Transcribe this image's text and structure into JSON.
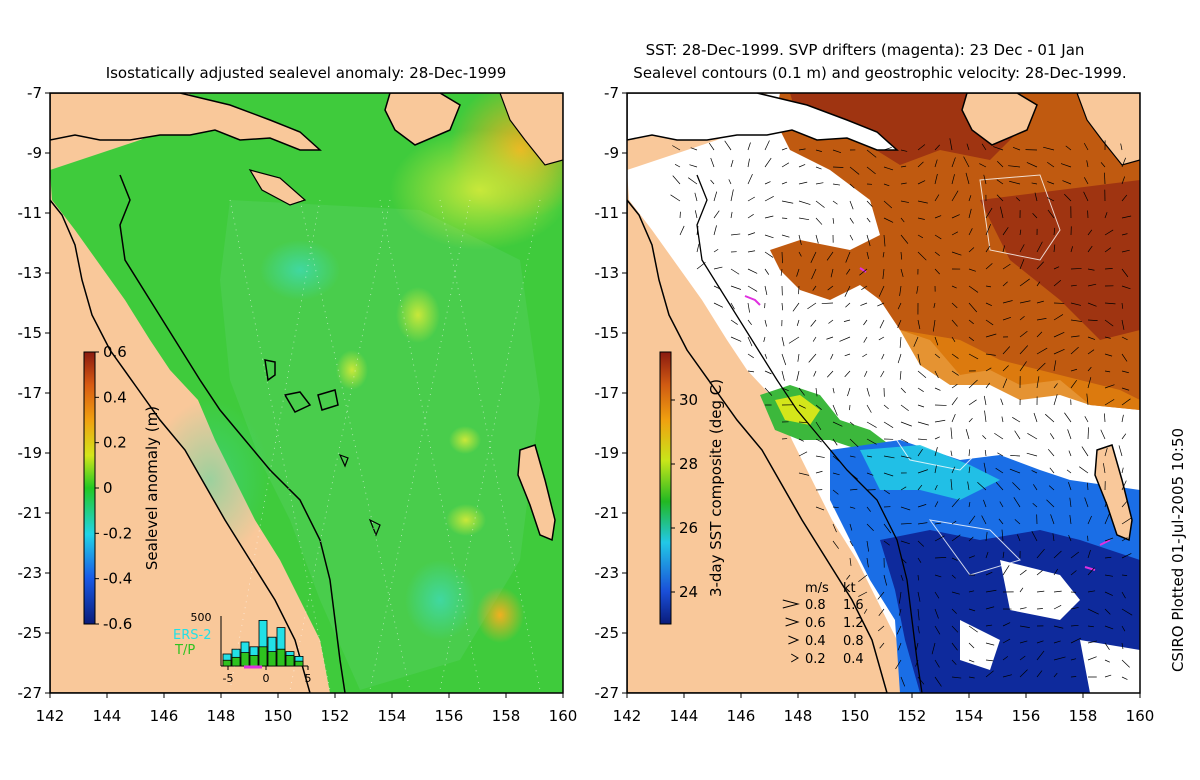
{
  "left_panel": {
    "title": "Isostatically adjusted sealevel anomaly: 28-Dec-1999",
    "colorbar": {
      "label": "Sealevel anomaly (m)",
      "ticks": [
        "0.6",
        "0.4",
        "0.2",
        "0",
        "-0.2",
        "-0.4",
        "-0.6"
      ],
      "range": [
        -0.6,
        0.6
      ]
    },
    "histogram": {
      "max_label": "500",
      "legend_ers2": "ERS-2",
      "legend_tp": "T/P",
      "x_ticks": [
        "-5",
        "0",
        "5"
      ],
      "ers2_counts": [
        0.25,
        0.35,
        0.5,
        0.4,
        0.95,
        0.6,
        0.8,
        0.3,
        0.2
      ],
      "tp_counts": [
        0.12,
        0.18,
        0.28,
        0.22,
        0.4,
        0.3,
        0.35,
        0.22,
        0.1
      ],
      "colors": {
        "ers2": "#22e0e6",
        "tp": "#2ec21f"
      }
    }
  },
  "right_panel": {
    "title_line1": "SST: 28-Dec-1999. SVP drifters (magenta): 23 Dec - 01 Jan",
    "title_line2": "Sealevel contours (0.1 m) and geostrophic velocity: 28-Dec-1999.",
    "colorbar": {
      "label": "3-day SST composite (deg C)",
      "ticks": [
        "30",
        "28",
        "26",
        "24"
      ],
      "range": [
        23,
        31.5
      ]
    },
    "velocity_legend": {
      "header_ms": "m/s",
      "header_kt": "kt",
      "rows": [
        {
          "ms": "0.8",
          "kt": "1.6"
        },
        {
          "ms": "0.6",
          "kt": "1.2"
        },
        {
          "ms": "0.4",
          "kt": "0.8"
        },
        {
          "ms": "0.2",
          "kt": "0.4"
        }
      ]
    }
  },
  "axes": {
    "lat_ticks": [
      "-7",
      "-9",
      "-11",
      "-13",
      "-15",
      "-17",
      "-19",
      "-21",
      "-23",
      "-25",
      "-27"
    ],
    "lon_ticks": [
      "142",
      "144",
      "146",
      "148",
      "150",
      "152",
      "154",
      "156",
      "158",
      "160"
    ],
    "lat_range": [
      -27,
      -7
    ],
    "lon_range": [
      142,
      160
    ]
  },
  "credit": "CSIRO Plotted 01-Jul-2005 10:50",
  "colors": {
    "land": "#f9c89a",
    "sla_green": "#3fcb3c",
    "sst_warm": "#c05a10",
    "sst_cold": "#1a4fc8",
    "drifters": "#e030e0"
  }
}
